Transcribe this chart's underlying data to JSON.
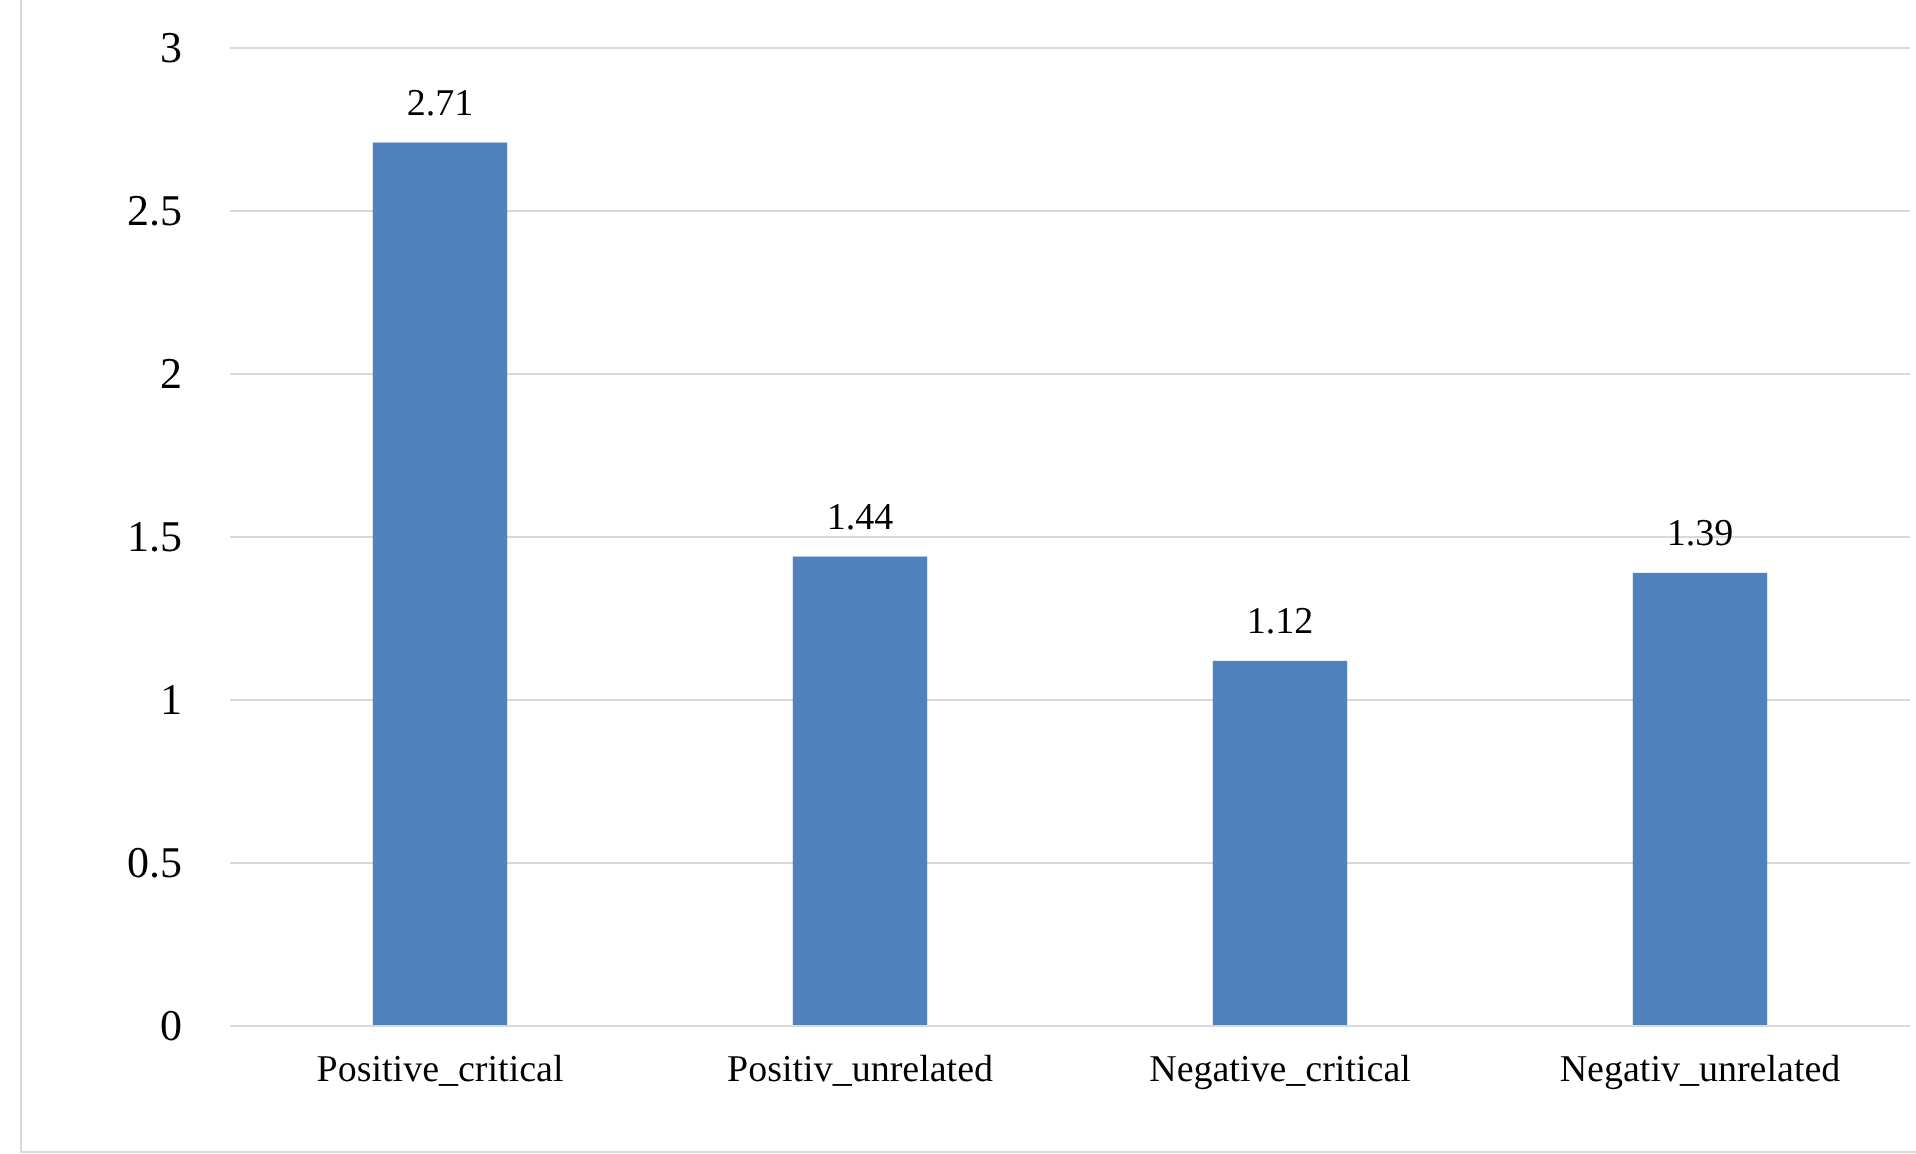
{
  "chart_data": {
    "type": "bar",
    "categories": [
      "Positive_critical",
      "Positiv_unrelated",
      "Negative_critical",
      "Negativ_unrelated"
    ],
    "values": [
      2.71,
      1.44,
      1.12,
      1.39
    ],
    "color": "#4f81bd",
    "ylim": [
      0,
      3
    ],
    "yticks": [
      0,
      0.5,
      1,
      1.5,
      2,
      2.5,
      3
    ],
    "grid": "y",
    "data_labels": true
  }
}
